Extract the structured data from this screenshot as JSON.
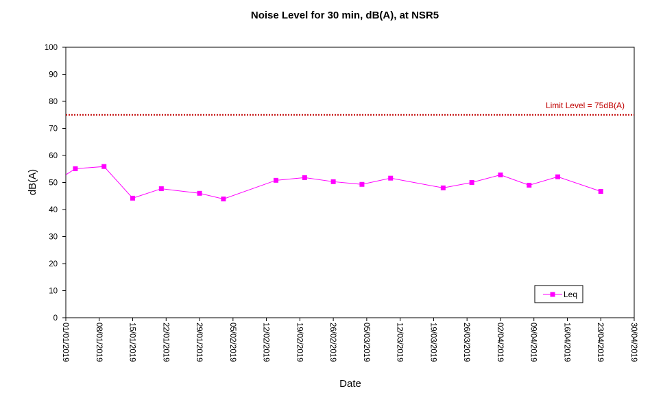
{
  "chart_data": {
    "type": "line",
    "title": "Noise Level for 30 min, dB(A), at NSR5",
    "xlabel": "Date",
    "ylabel": "dB(A)",
    "ylim": [
      0,
      100
    ],
    "yticks": [
      0,
      10,
      20,
      30,
      40,
      50,
      60,
      70,
      80,
      90,
      100
    ],
    "xlim": [
      "2019-01-01",
      "2019-04-30"
    ],
    "xticks": [
      "01/01/2019",
      "08/01/2019",
      "15/01/2019",
      "22/01/2019",
      "29/01/2019",
      "05/02/2019",
      "12/02/2019",
      "19/02/2019",
      "26/02/2019",
      "05/03/2019",
      "12/03/2019",
      "19/03/2019",
      "26/03/2019",
      "02/04/2019",
      "09/04/2019",
      "16/04/2019",
      "23/04/2019",
      "30/04/2019"
    ],
    "grid": false,
    "legend": "bottom-right",
    "series": [
      {
        "name": "Leq",
        "color": "#ff00ff",
        "x": [
          "2019-01-03",
          "2019-01-09",
          "2019-01-15",
          "2019-01-21",
          "2019-01-29",
          "2019-02-03",
          "2019-02-14",
          "2019-02-20",
          "2019-02-26",
          "2019-03-04",
          "2019-03-10",
          "2019-03-21",
          "2019-03-27",
          "2019-04-02",
          "2019-04-08",
          "2019-04-14",
          "2019-04-23"
        ],
        "values": [
          55.1,
          55.9,
          44.2,
          47.7,
          46.0,
          43.9,
          50.8,
          51.8,
          50.3,
          49.3,
          51.6,
          48.0,
          50.0,
          52.8,
          49.0,
          52.1,
          46.7
        ]
      }
    ],
    "reference_line": {
      "value": 75,
      "label": "Limit Level  = 75dB(A)",
      "color": "#c00000"
    }
  }
}
